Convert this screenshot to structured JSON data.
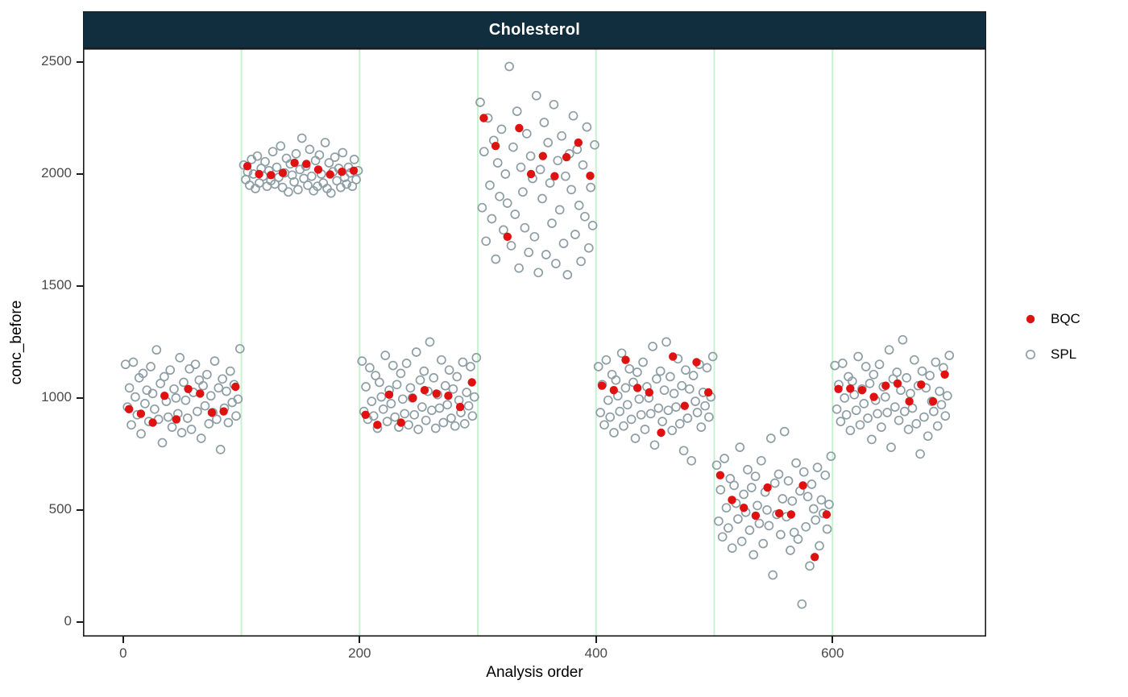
{
  "chart_data": {
    "type": "scatter",
    "title": "Cholesterol",
    "xlabel": "Analysis order",
    "ylabel": "conc_before",
    "xlim": [
      -34,
      730
    ],
    "ylim": [
      -65,
      2561
    ],
    "x_ticks": [
      0,
      200,
      400,
      600
    ],
    "y_ticks": [
      0,
      500,
      1000,
      1500,
      2000,
      2500
    ],
    "grid": "off",
    "batch_boundaries": [
      100,
      200,
      300,
      400,
      500,
      600
    ],
    "colors": {
      "bqc": "#e01111",
      "spl": "#8e9ea5",
      "separator": "#c8f2cf",
      "strip_bg": "#112e3e",
      "strip_text": "#ffffff",
      "panel_border": "#1a1a1a",
      "tick_label": "#4a4a4a"
    },
    "legend": {
      "position": "right",
      "entries": [
        {
          "label": "BQC",
          "marker": "filled",
          "color": "#e01111"
        },
        {
          "label": "SPL",
          "marker": "open",
          "color": "#8e9ea5"
        }
      ]
    },
    "series": [
      {
        "name": "BQC",
        "marker": "filled-circle",
        "color": "#e01111",
        "points": [
          [
            5,
            950
          ],
          [
            15,
            930
          ],
          [
            25,
            890
          ],
          [
            35,
            1010
          ],
          [
            45,
            905
          ],
          [
            55,
            1040
          ],
          [
            65,
            1020
          ],
          [
            75,
            935
          ],
          [
            85,
            940
          ],
          [
            95,
            1050
          ],
          [
            105,
            2035
          ],
          [
            115,
            2000
          ],
          [
            125,
            1995
          ],
          [
            135,
            2005
          ],
          [
            145,
            2050
          ],
          [
            155,
            2045
          ],
          [
            165,
            2020
          ],
          [
            175,
            1998
          ],
          [
            185,
            2010
          ],
          [
            195,
            2015
          ],
          [
            205,
            925
          ],
          [
            215,
            880
          ],
          [
            225,
            1015
          ],
          [
            235,
            890
          ],
          [
            245,
            1000
          ],
          [
            255,
            1035
          ],
          [
            265,
            1020
          ],
          [
            275,
            1010
          ],
          [
            285,
            960
          ],
          [
            295,
            1070
          ],
          [
            305,
            2250
          ],
          [
            315,
            2125
          ],
          [
            325,
            1720
          ],
          [
            335,
            2205
          ],
          [
            345,
            2000
          ],
          [
            355,
            2080
          ],
          [
            365,
            1990
          ],
          [
            375,
            2075
          ],
          [
            385,
            2140
          ],
          [
            395,
            1992
          ],
          [
            405,
            1055
          ],
          [
            415,
            1035
          ],
          [
            425,
            1170
          ],
          [
            435,
            1045
          ],
          [
            445,
            1025
          ],
          [
            455,
            845
          ],
          [
            465,
            1185
          ],
          [
            475,
            965
          ],
          [
            485,
            1160
          ],
          [
            495,
            1025
          ],
          [
            505,
            655
          ],
          [
            515,
            545
          ],
          [
            525,
            510
          ],
          [
            535,
            475
          ],
          [
            545,
            600
          ],
          [
            555,
            485
          ],
          [
            565,
            480
          ],
          [
            575,
            610
          ],
          [
            585,
            290
          ],
          [
            595,
            480
          ],
          [
            605,
            1040
          ],
          [
            615,
            1042
          ],
          [
            625,
            1035
          ],
          [
            635,
            1005
          ],
          [
            645,
            1055
          ],
          [
            655,
            1065
          ],
          [
            665,
            985
          ],
          [
            675,
            1060
          ],
          [
            685,
            985
          ],
          [
            695,
            1105
          ]
        ]
      },
      {
        "name": "SPL",
        "marker": "open-circle",
        "color": "#8e9ea5",
        "batches": [
          {
            "x_start": 2,
            "x_step": 1.64,
            "y": [
              1150,
              960,
              1045,
              880,
              1160,
              1005,
              925,
              1090,
              840,
              1110,
              975,
              1035,
              895,
              1140,
              1020,
              950,
              1215,
              905,
              1065,
              800,
              1095,
              985,
              915,
              1125,
              870,
              1040,
              1000,
              930,
              1180,
              845,
              1070,
              990,
              910,
              1130,
              860,
              1025,
              1150,
              940,
              1080,
              820,
              1055,
              965,
              1105,
              885,
              1010,
              935,
              1165,
              905,
              1045,
              770,
              1085,
              955,
              1030,
              890,
              1120,
              980,
              1060,
              920,
              995,
              1220
            ]
          },
          {
            "x_start": 102,
            "x_step": 1.64,
            "y": [
              2040,
              1975,
              2010,
              1950,
              2065,
              2000,
              1935,
              2080,
              1960,
              2025,
              1990,
              2055,
              1945,
              2015,
              1970,
              2100,
              1955,
              2030,
              1985,
              2125,
              1940,
              2005,
              2070,
              1920,
              2045,
              1995,
              1965,
              2090,
              1930,
              2020,
              2160,
              1980,
              2035,
              1950,
              2110,
              1990,
              1925,
              2060,
              1945,
              2085,
              2000,
              1960,
              2140,
              1935,
              2050,
              1915,
              2010,
              2075,
              1970,
              2025,
              1940,
              2095,
              1985,
              1955,
              2030,
              2005,
              1945,
              2065,
              1975,
              2015
            ]
          },
          {
            "x_start": 202,
            "x_step": 1.64,
            "y": [
              1165,
              940,
              1050,
              905,
              1135,
              985,
              920,
              1100,
              865,
              1070,
              1005,
              950,
              1190,
              895,
              1035,
              975,
              1145,
              915,
              1060,
              870,
              1110,
              995,
              930,
              1155,
              880,
              1045,
              1000,
              925,
              1205,
              860,
              1080,
              960,
              1120,
              900,
              1030,
              1250,
              945,
              1090,
              865,
              1015,
              955,
              1170,
              890,
              1055,
              970,
              1125,
              910,
              1040,
              875,
              1095,
              990,
              935,
              1160,
              885,
              1025,
              965,
              1140,
              920,
              1005,
              1180
            ]
          },
          {
            "x_start": 302,
            "x_step": 1.64,
            "y": [
              2320,
              1850,
              2100,
              1700,
              2250,
              1950,
              1800,
              2150,
              1620,
              2050,
              1900,
              2200,
              1750,
              2000,
              1870,
              2480,
              1680,
              2120,
              1820,
              2280,
              1580,
              2030,
              1920,
              1760,
              2180,
              1650,
              2080,
              1980,
              1720,
              2350,
              1560,
              2020,
              1890,
              2230,
              1640,
              2140,
              1960,
              1780,
              2310,
              1600,
              2060,
              1840,
              2170,
              1690,
              1990,
              1550,
              2090,
              1930,
              2260,
              1730,
              2110,
              1860,
              1610,
              2040,
              1810,
              2210,
              1670,
              1940,
              1770,
              2130
            ]
          },
          {
            "x_start": 402,
            "x_step": 1.64,
            "y": [
              1140,
              935,
              1060,
              880,
              1170,
              990,
              915,
              1105,
              845,
              1080,
              1010,
              940,
              1200,
              875,
              1045,
              970,
              1130,
              905,
              1070,
              820,
              1115,
              995,
              925,
              1160,
              860,
              1050,
              1000,
              930,
              1230,
              790,
              1085,
              955,
              1120,
              895,
              1035,
              1250,
              945,
              1095,
              855,
              1020,
              960,
              1175,
              885,
              1055,
              765,
              1125,
              910,
              1040,
              720,
              1100,
              985,
              935,
              1150,
              870,
              1025,
              965,
              1135,
              915,
              1005,
              1185
            ]
          },
          {
            "x_start": 502,
            "x_step": 1.64,
            "y": [
              700,
              450,
              590,
              380,
              730,
              510,
              420,
              640,
              330,
              610,
              530,
              460,
              780,
              360,
              570,
              490,
              680,
              410,
              600,
              300,
              650,
              520,
              440,
              720,
              350,
              580,
              500,
              430,
              820,
              210,
              620,
              480,
              660,
              390,
              550,
              850,
              470,
              630,
              320,
              540,
              400,
              710,
              370,
              585,
              80,
              670,
              425,
              560,
              250,
              615,
              505,
              455,
              690,
              340,
              545,
              485,
              655,
              415,
              525,
              740
            ]
          },
          {
            "x_start": 602,
            "x_step": 1.64,
            "y": [
              1145,
              950,
              1060,
              895,
              1155,
              1000,
              925,
              1095,
              855,
              1075,
              1015,
              945,
              1185,
              880,
              1040,
              975,
              1140,
              910,
              1065,
              815,
              1105,
              990,
              930,
              1150,
              870,
              1050,
              1005,
              935,
              1215,
              780,
              1085,
              960,
              1115,
              900,
              1035,
              1260,
              940,
              1090,
              860,
              1020,
              955,
              1170,
              885,
              1055,
              750,
              1120,
              915,
              1045,
              830,
              1100,
              985,
              940,
              1160,
              875,
              1030,
              970,
              1135,
              920,
              1010,
              1190
            ]
          }
        ]
      }
    ]
  }
}
